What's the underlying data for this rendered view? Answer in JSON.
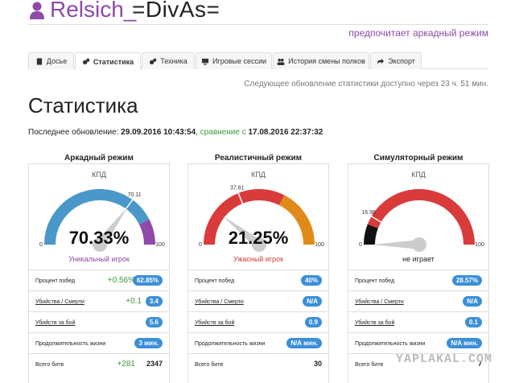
{
  "header": {
    "user_icon": "user-icon",
    "user_name": "Relsich_",
    "user_tag": "=DivAs=",
    "prefers": "предпочитает аркадный режим"
  },
  "tabs": [
    {
      "label": "Досье",
      "icon": "file-icon",
      "active": false
    },
    {
      "label": "Статистика",
      "icon": "gears-icon",
      "active": true
    },
    {
      "label": "Техника",
      "icon": "gears-icon",
      "active": false
    },
    {
      "label": "Игровые сессии",
      "icon": "monitor-icon",
      "active": false
    },
    {
      "label": "История смены полков",
      "icon": "users-icon",
      "active": false
    },
    {
      "label": "Экспорт",
      "icon": "share-icon",
      "active": false
    }
  ],
  "next_update": "Следующее обновление статистики доступно через 23 ч. 51 мин.",
  "page_title": "Статистика",
  "last_update": {
    "prefix": "Последнее обновление:",
    "date": "29.09.2016 10:43:54",
    "compare": "сравнение",
    "with": "с",
    "compare_date": "17.08.2016 22:37:32"
  },
  "modes": [
    {
      "title": "Аркадный режим",
      "kpd_label": "КПД",
      "gauge_min": "0",
      "gauge_max": "100",
      "value": 70.33,
      "value_text": "70.33%",
      "prev": 70.11,
      "prev_text": "70.11",
      "rating": "Уникальный игрок",
      "rating_color": "#8e4aa8",
      "rows": [
        {
          "label": "Процент побед",
          "delta": "+0.56%",
          "value": "62.85%",
          "style": "badge"
        },
        {
          "label": "Убийства / Смерти",
          "delta": "+0.1",
          "value": "3.4",
          "style": "badge"
        },
        {
          "label": "Убийств за бой",
          "delta": "",
          "value": "5.6",
          "style": "badge"
        },
        {
          "label": "Продолжительность жизни",
          "delta": "",
          "value": "3 мин.",
          "style": "badge"
        },
        {
          "label": "Всего битв",
          "delta": "+281",
          "value": "2347",
          "style": "plain"
        }
      ]
    },
    {
      "title": "Реалистичный режим",
      "kpd_label": "КПД",
      "gauge_min": "0",
      "gauge_max": "100",
      "value": 21.25,
      "value_text": "21.25%",
      "prev": 37.81,
      "prev_text": "37.81",
      "rating": "Ужасный игрок",
      "rating_color": "#d93a3a",
      "rows": [
        {
          "label": "Процент побед",
          "delta": "",
          "value": "40%",
          "style": "badge"
        },
        {
          "label": "Убийства / Смерти",
          "delta": "",
          "value": "N/A",
          "style": "badge"
        },
        {
          "label": "Убийств за бой",
          "delta": "",
          "value": "0.9",
          "style": "badge"
        },
        {
          "label": "Продолжительность жизни",
          "delta": "",
          "value": "N/A мин.",
          "style": "badge"
        },
        {
          "label": "Всего битв",
          "delta": "",
          "value": "30",
          "style": "plain"
        }
      ]
    },
    {
      "title": "Симуляторный режим",
      "kpd_label": "КПД",
      "gauge_min": "0",
      "gauge_max": "100",
      "value": 0,
      "value_text": "",
      "prev": 16.98,
      "prev_text": "16.98",
      "rating": "не играет",
      "rating_color": "#222222",
      "rows": [
        {
          "label": "Процент побед",
          "delta": "",
          "value": "28.57%",
          "style": "badge"
        },
        {
          "label": "Убийства / Смерти",
          "delta": "",
          "value": "N/A",
          "style": "badge"
        },
        {
          "label": "Убийств за бой",
          "delta": "",
          "value": "0.1",
          "style": "badge"
        },
        {
          "label": "Продолжительность жизни",
          "delta": "",
          "value": "N/A мин.",
          "style": "badge"
        },
        {
          "label": "Всего битв",
          "delta": "",
          "value": "7",
          "style": "plain"
        }
      ]
    }
  ],
  "colors": {
    "brand": "#8e4aa8",
    "badge": "#3b8fd9",
    "positive": "#3a9a3a",
    "gauge_blue": "#4a97c9",
    "gauge_purple": "#8e4aa8",
    "gauge_red": "#d93a3a",
    "gauge_orange": "#e08a1a",
    "gauge_black": "#111111",
    "needle": "#cccccc"
  },
  "watermark": "YAPLAKAL.COM"
}
